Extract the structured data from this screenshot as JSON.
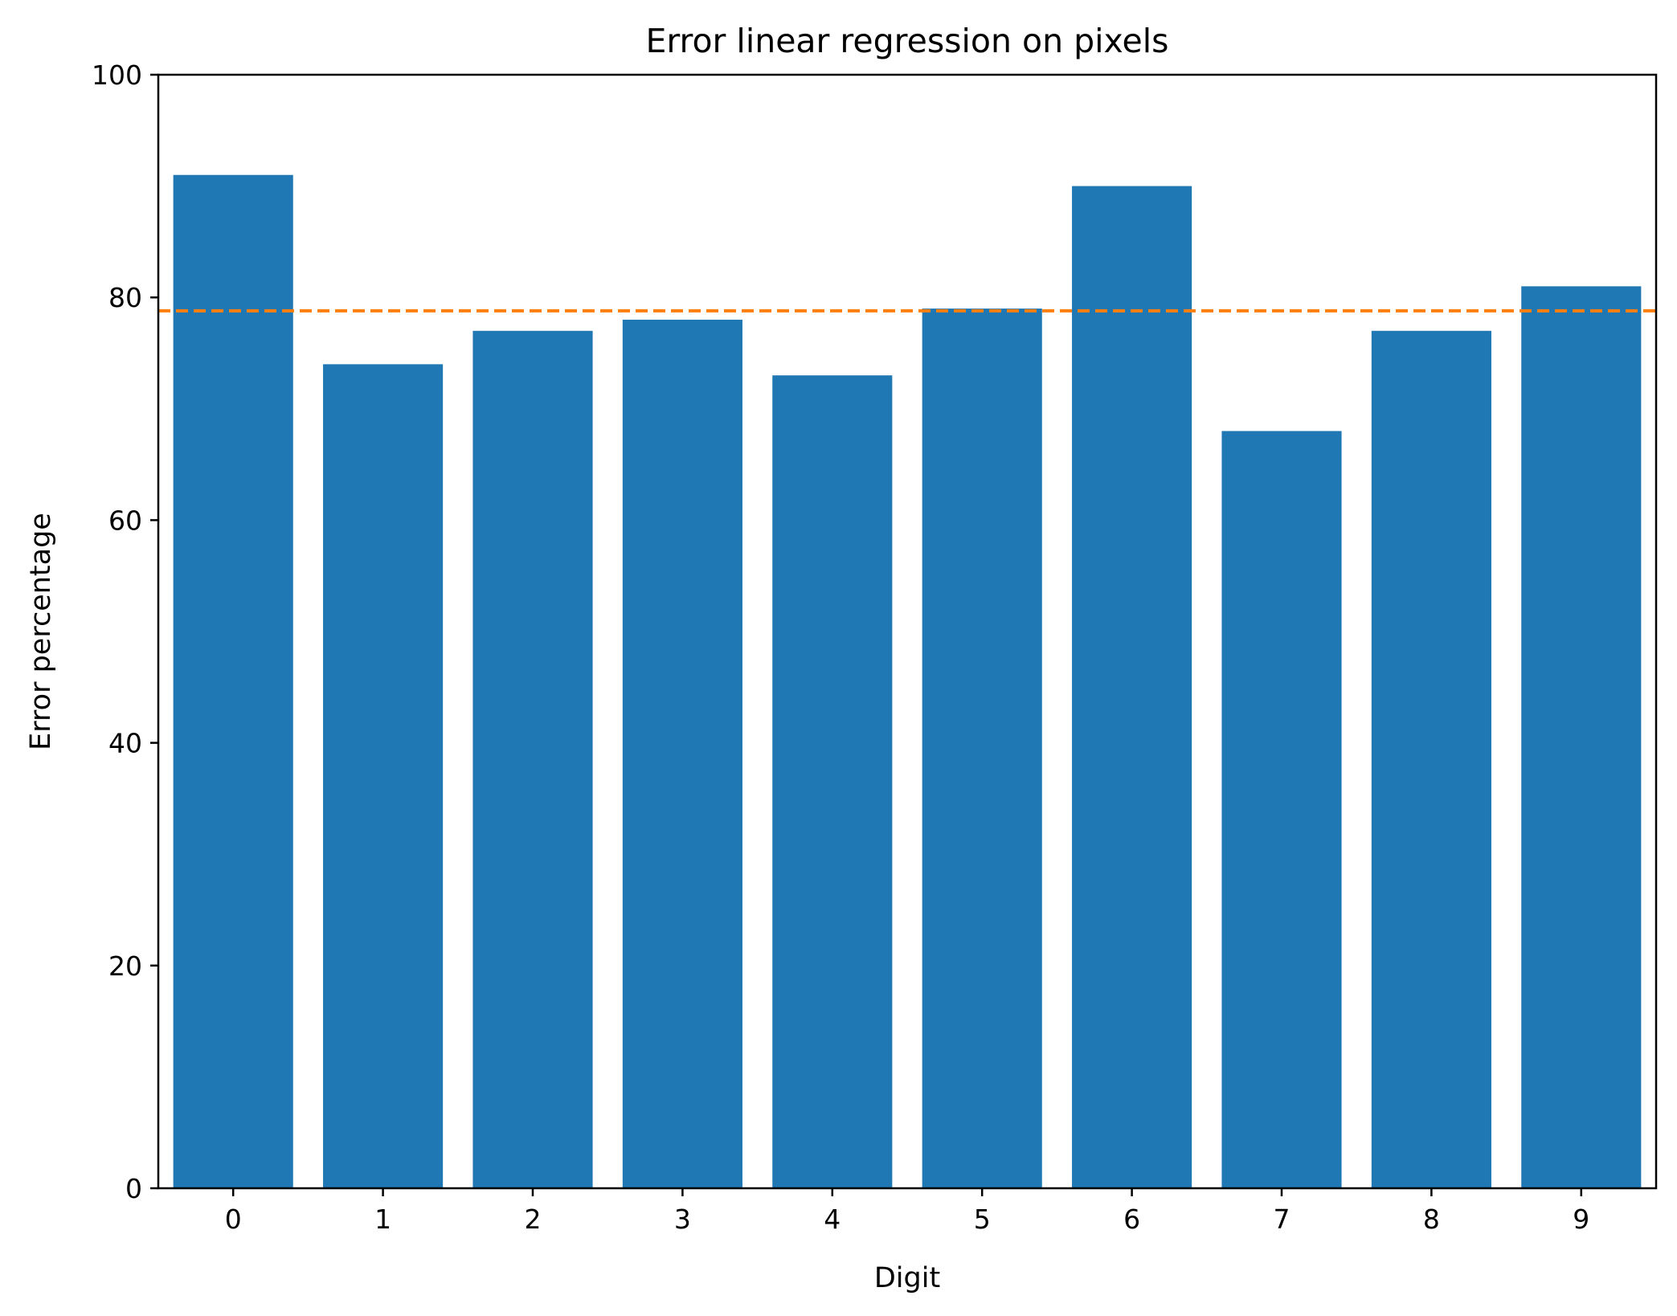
{
  "chart_data": {
    "type": "bar",
    "title": "Error linear regression on pixels",
    "xlabel": "Digit",
    "ylabel": "Error percentage",
    "categories": [
      "0",
      "1",
      "2",
      "3",
      "4",
      "5",
      "6",
      "7",
      "8",
      "9"
    ],
    "values": [
      91,
      74,
      77,
      78,
      73,
      79,
      90,
      68,
      77,
      81
    ],
    "ylim": [
      0,
      100
    ],
    "yticks": [
      0,
      20,
      40,
      60,
      80,
      100
    ],
    "ytick_labels": [
      "0",
      "20",
      "40",
      "60",
      "80",
      "100"
    ],
    "reference_line": {
      "y": 78.8,
      "style": "dashed"
    },
    "grid": false,
    "legend": null,
    "colors": {
      "bar": "#1f77b4",
      "reference_line": "#ff7f0e",
      "axes": "#000000",
      "background": "#ffffff"
    }
  }
}
